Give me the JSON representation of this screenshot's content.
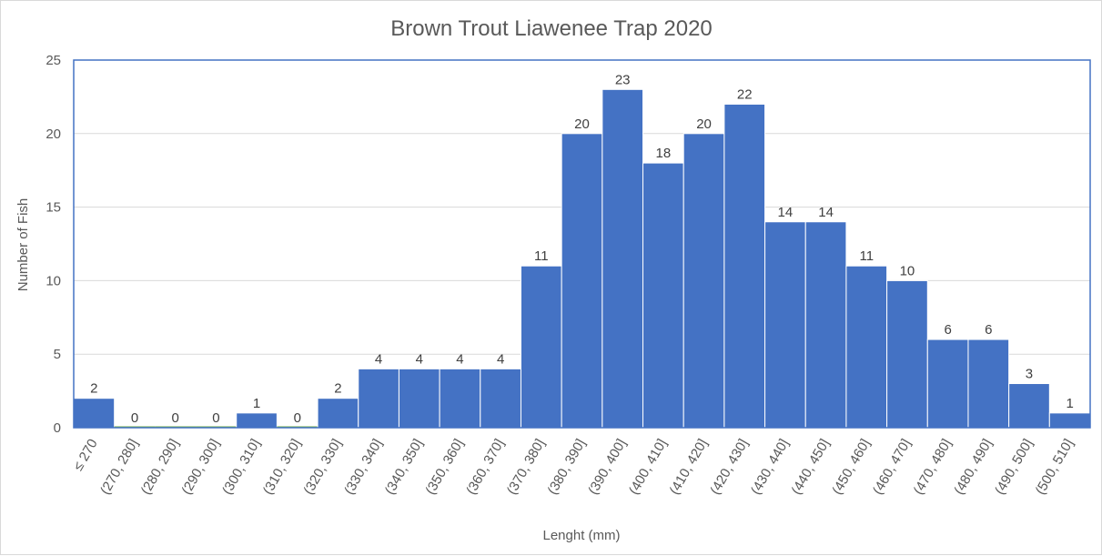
{
  "chart_data": {
    "type": "bar",
    "title": "Brown Trout Liawenee Trap 2020",
    "xlabel": "Lenght (mm)",
    "ylabel": "Number of  Fish",
    "ylim": [
      0,
      25
    ],
    "yticks": [
      0,
      5,
      10,
      15,
      20,
      25
    ],
    "grid": true,
    "categories": [
      "≤ 270",
      "(270, 280]",
      "(280, 290]",
      "(290, 300]",
      "(300, 310]",
      "(310, 320]",
      "(320, 330]",
      "(330, 340]",
      "(340, 350]",
      "(350, 360]",
      "(360, 370]",
      "(370, 380]",
      "(380, 390]",
      "(390, 400]",
      "(400, 410]",
      "(410, 420]",
      "(420, 430]",
      "(430, 440]",
      "(440, 450]",
      "(450, 460]",
      "(460, 470]",
      "(470, 480]",
      "(480, 490]",
      "(490, 500]",
      "(500, 510]"
    ],
    "values": [
      2,
      0,
      0,
      0,
      1,
      0,
      2,
      4,
      4,
      4,
      4,
      11,
      20,
      23,
      18,
      20,
      22,
      14,
      14,
      11,
      10,
      6,
      6,
      3,
      1
    ],
    "colors": {
      "bar": "#4472c4",
      "plot_border": "#4472c4",
      "zero_bar": "#70ad47"
    }
  }
}
